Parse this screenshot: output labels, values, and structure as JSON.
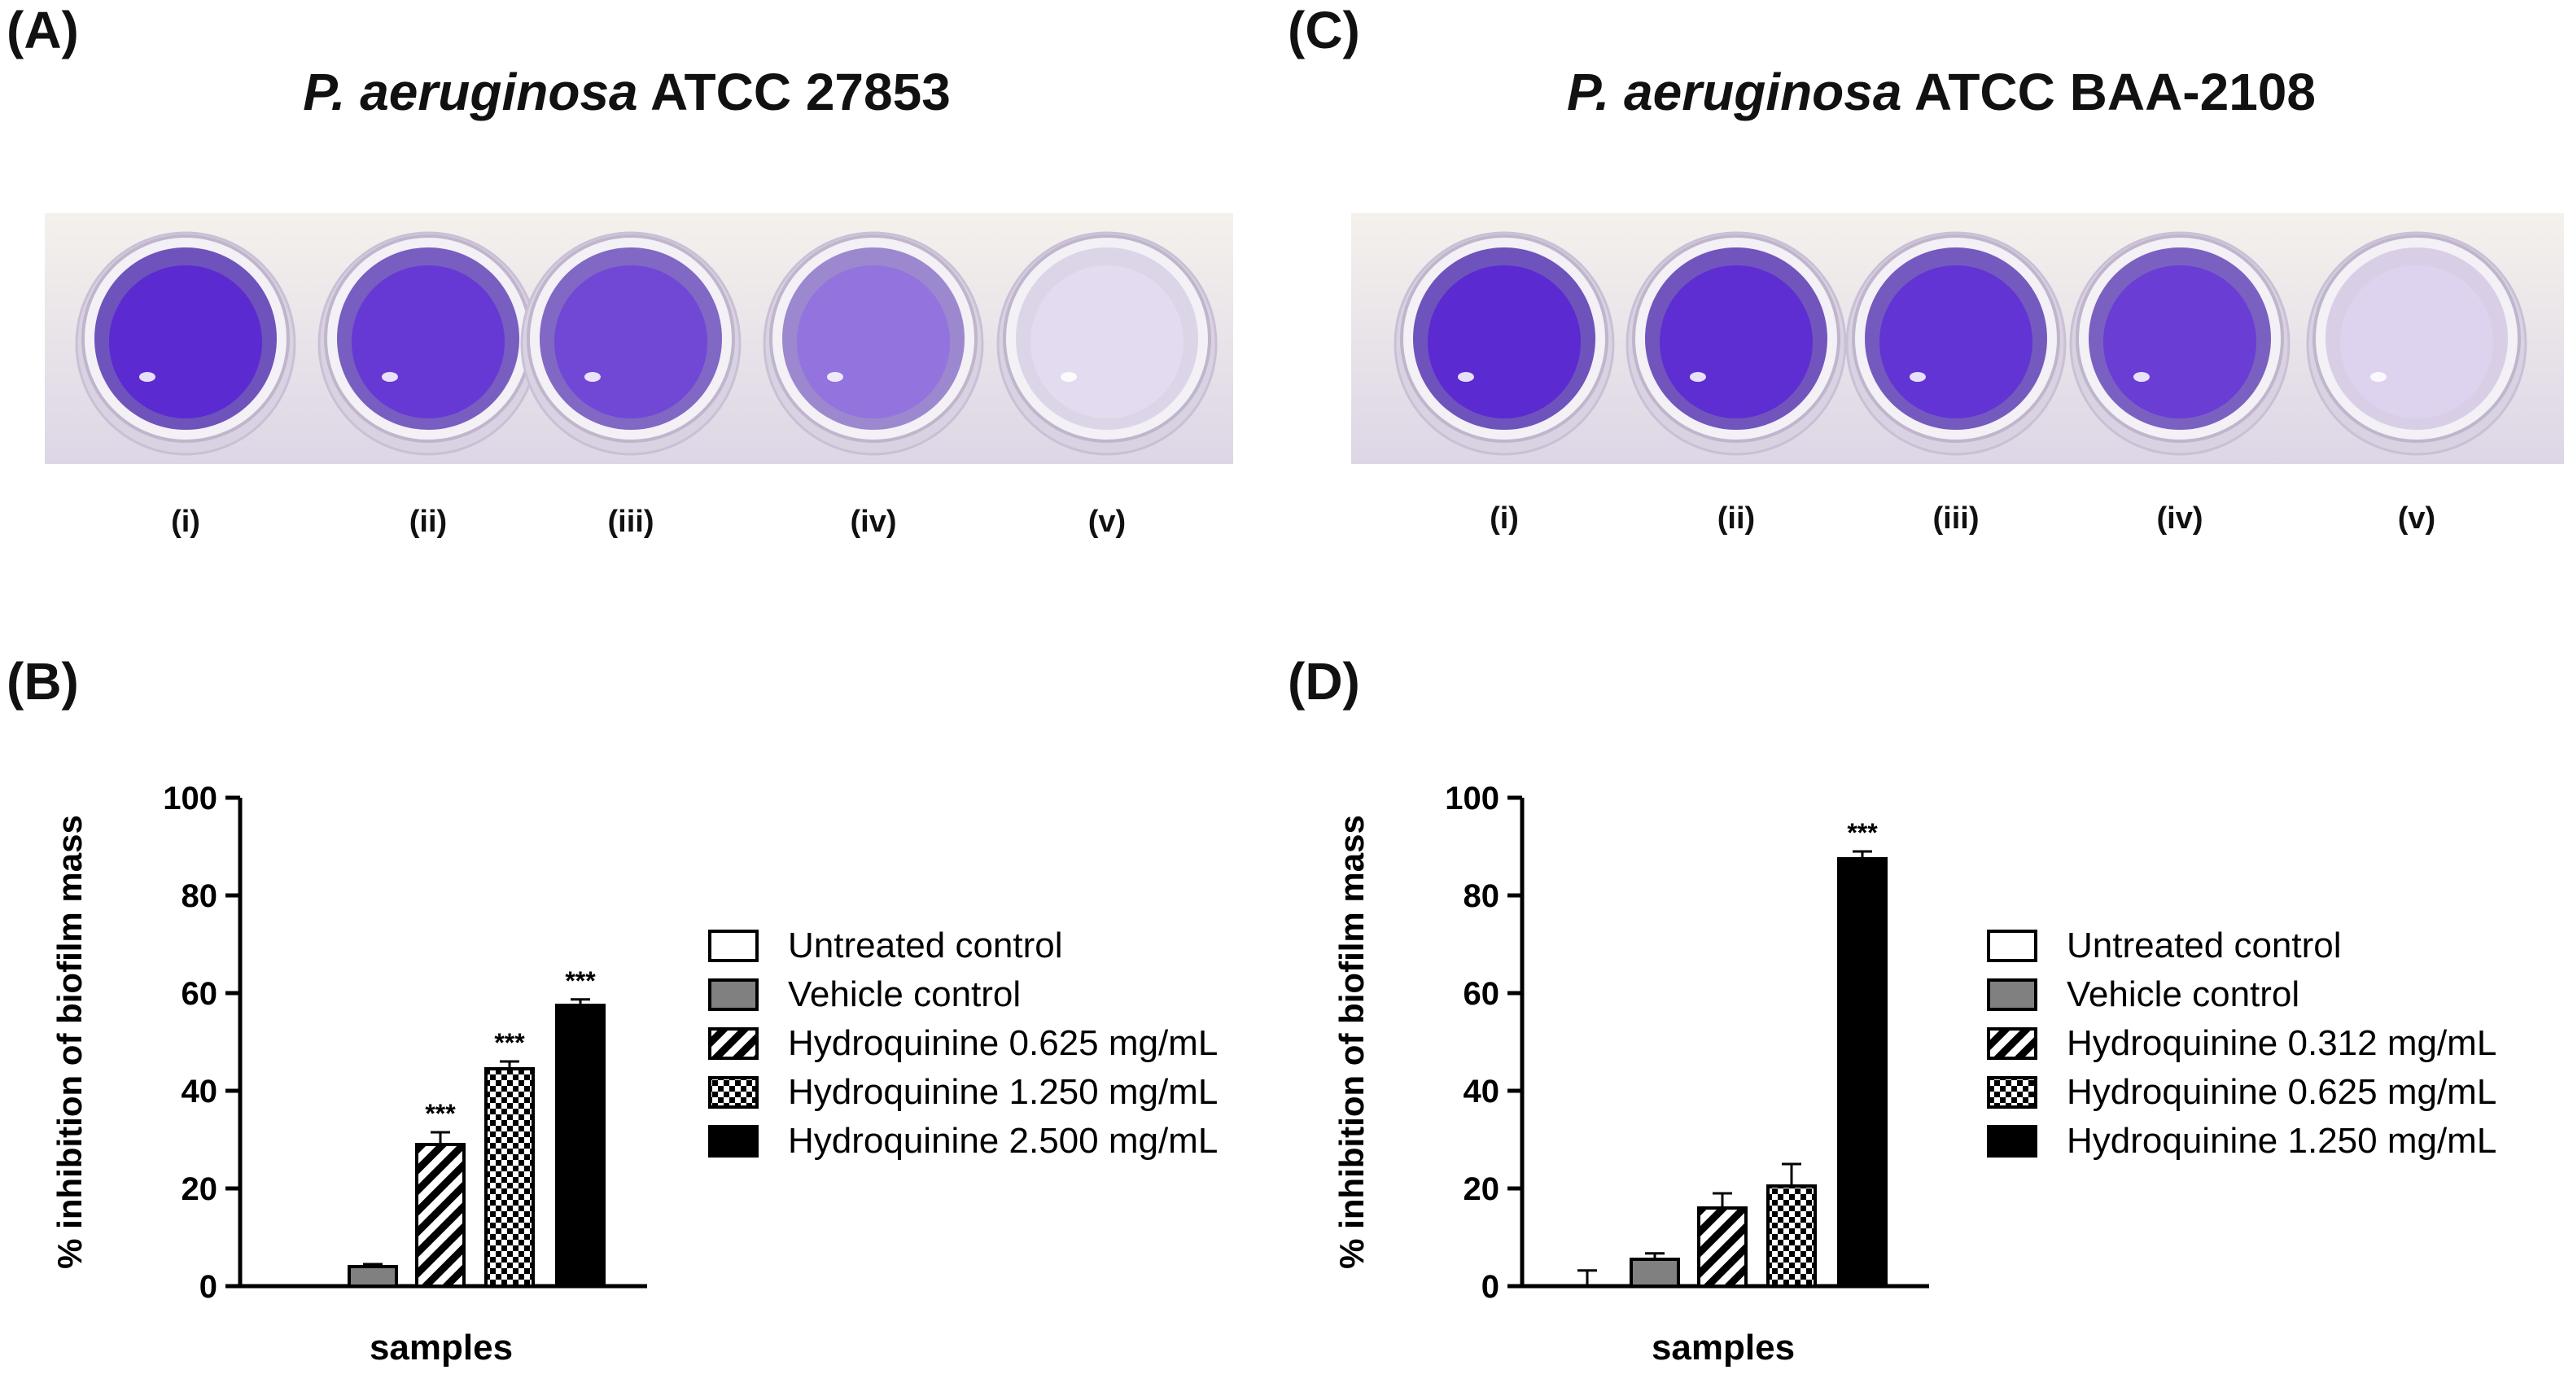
{
  "colors": {
    "stain_violet": "#5b2ad1",
    "stain_violet_dark": "#3b16a8",
    "plate_bg": "#e9e4ef",
    "vehicle_gray": "#808080",
    "bar_black": "#000000"
  },
  "panels": {
    "A": {
      "label": "(A)",
      "title_species": "P. aeruginosa",
      "title_strain": "ATCC 27853",
      "wells": [
        {
          "label": "(i)",
          "stain": 1.0
        },
        {
          "label": "(ii)",
          "stain": 0.92
        },
        {
          "label": "(iii)",
          "stain": 0.85
        },
        {
          "label": "(iv)",
          "stain": 0.62
        },
        {
          "label": "(v)",
          "stain": 0.08
        }
      ]
    },
    "C": {
      "label": "(C)",
      "title_species": "P. aeruginosa",
      "title_strain": "ATCC BAA-2108",
      "wells": [
        {
          "label": "(i)",
          "stain": 1.0
        },
        {
          "label": "(ii)",
          "stain": 0.98
        },
        {
          "label": "(iii)",
          "stain": 0.95
        },
        {
          "label": "(iv)",
          "stain": 0.9
        },
        {
          "label": "(v)",
          "stain": 0.12
        }
      ]
    },
    "B": {
      "label": "(B)"
    },
    "D": {
      "label": "(D)"
    }
  },
  "chart_data": [
    {
      "id": "B",
      "type": "bar",
      "title": "",
      "xlabel": "samples",
      "ylabel": "% inhibition of biofilm mass",
      "ylim": [
        0,
        100
      ],
      "yticks": [
        0,
        20,
        40,
        60,
        80,
        100
      ],
      "categories": [
        "Untreated control",
        "Vehicle control",
        "Hydroquinine 0.625 mg/mL",
        "Hydroquinine 1.250 mg/mL",
        "Hydroquinine 2.500 mg/mL"
      ],
      "values": [
        0,
        4,
        29,
        44.5,
        57.5
      ],
      "errors": [
        0,
        0.5,
        2.5,
        1.5,
        1.2
      ],
      "annotations": [
        "",
        "",
        "***",
        "***",
        "***"
      ],
      "fills": [
        "white",
        "gray",
        "hatch",
        "check",
        "black"
      ],
      "legend_position": "right"
    },
    {
      "id": "D",
      "type": "bar",
      "title": "",
      "xlabel": "samples",
      "ylabel": "% inhibition of biofilm mass",
      "ylim": [
        0,
        100
      ],
      "yticks": [
        0,
        20,
        40,
        60,
        80,
        100
      ],
      "categories": [
        "Untreated control",
        "Vehicle control",
        "Hydroquinine 0.312 mg/mL",
        "Hydroquinine 0.625 mg/mL",
        "Hydroquinine 1.250 mg/mL"
      ],
      "values": [
        0,
        5.5,
        16,
        20.5,
        87.5
      ],
      "errors": [
        3.2,
        1.2,
        3,
        4.5,
        1.5
      ],
      "annotations": [
        "",
        "",
        "",
        "",
        "***"
      ],
      "fills": [
        "white",
        "gray",
        "hatch",
        "check",
        "black"
      ],
      "legend_position": "right"
    }
  ]
}
